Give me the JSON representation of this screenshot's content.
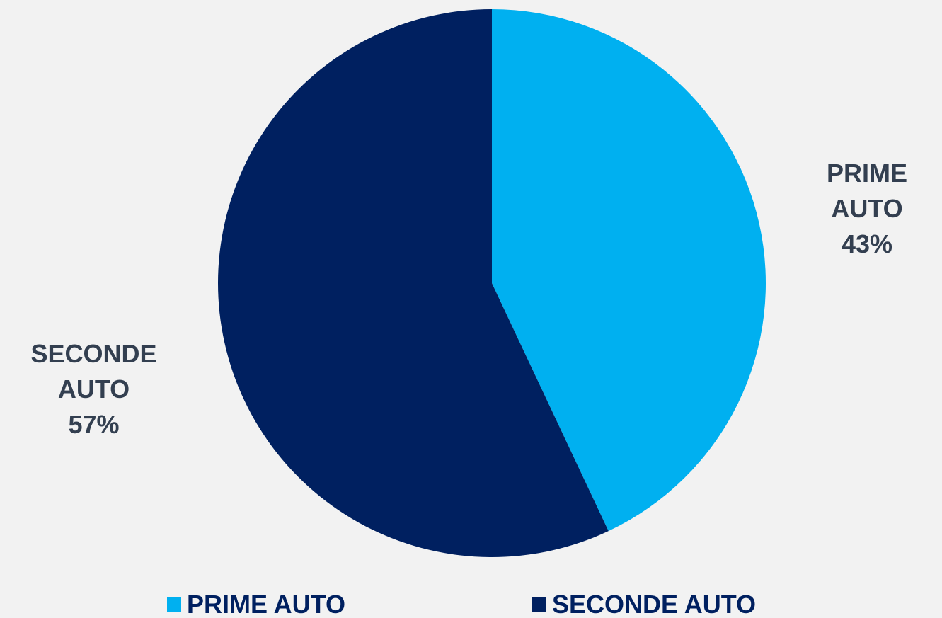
{
  "chart_data": {
    "type": "pie",
    "title": "",
    "categories": [
      "PRIME AUTO",
      "SECONDE AUTO"
    ],
    "values": [
      43,
      57
    ],
    "unit": "%",
    "colors": [
      "#00b0f0",
      "#002060"
    ],
    "data_labels": [
      {
        "line1": "PRIME",
        "line2": "AUTO",
        "line3": "43%"
      },
      {
        "line1": "SECONDE",
        "line2": "AUTO",
        "line3": "57%"
      }
    ],
    "legend": {
      "placement": "bottom",
      "entries": [
        "PRIME AUTO",
        "SECONDE AUTO"
      ]
    }
  },
  "label_color": "#333f50",
  "legend_text_color": "#002060",
  "background_color": "#f2f2f2"
}
